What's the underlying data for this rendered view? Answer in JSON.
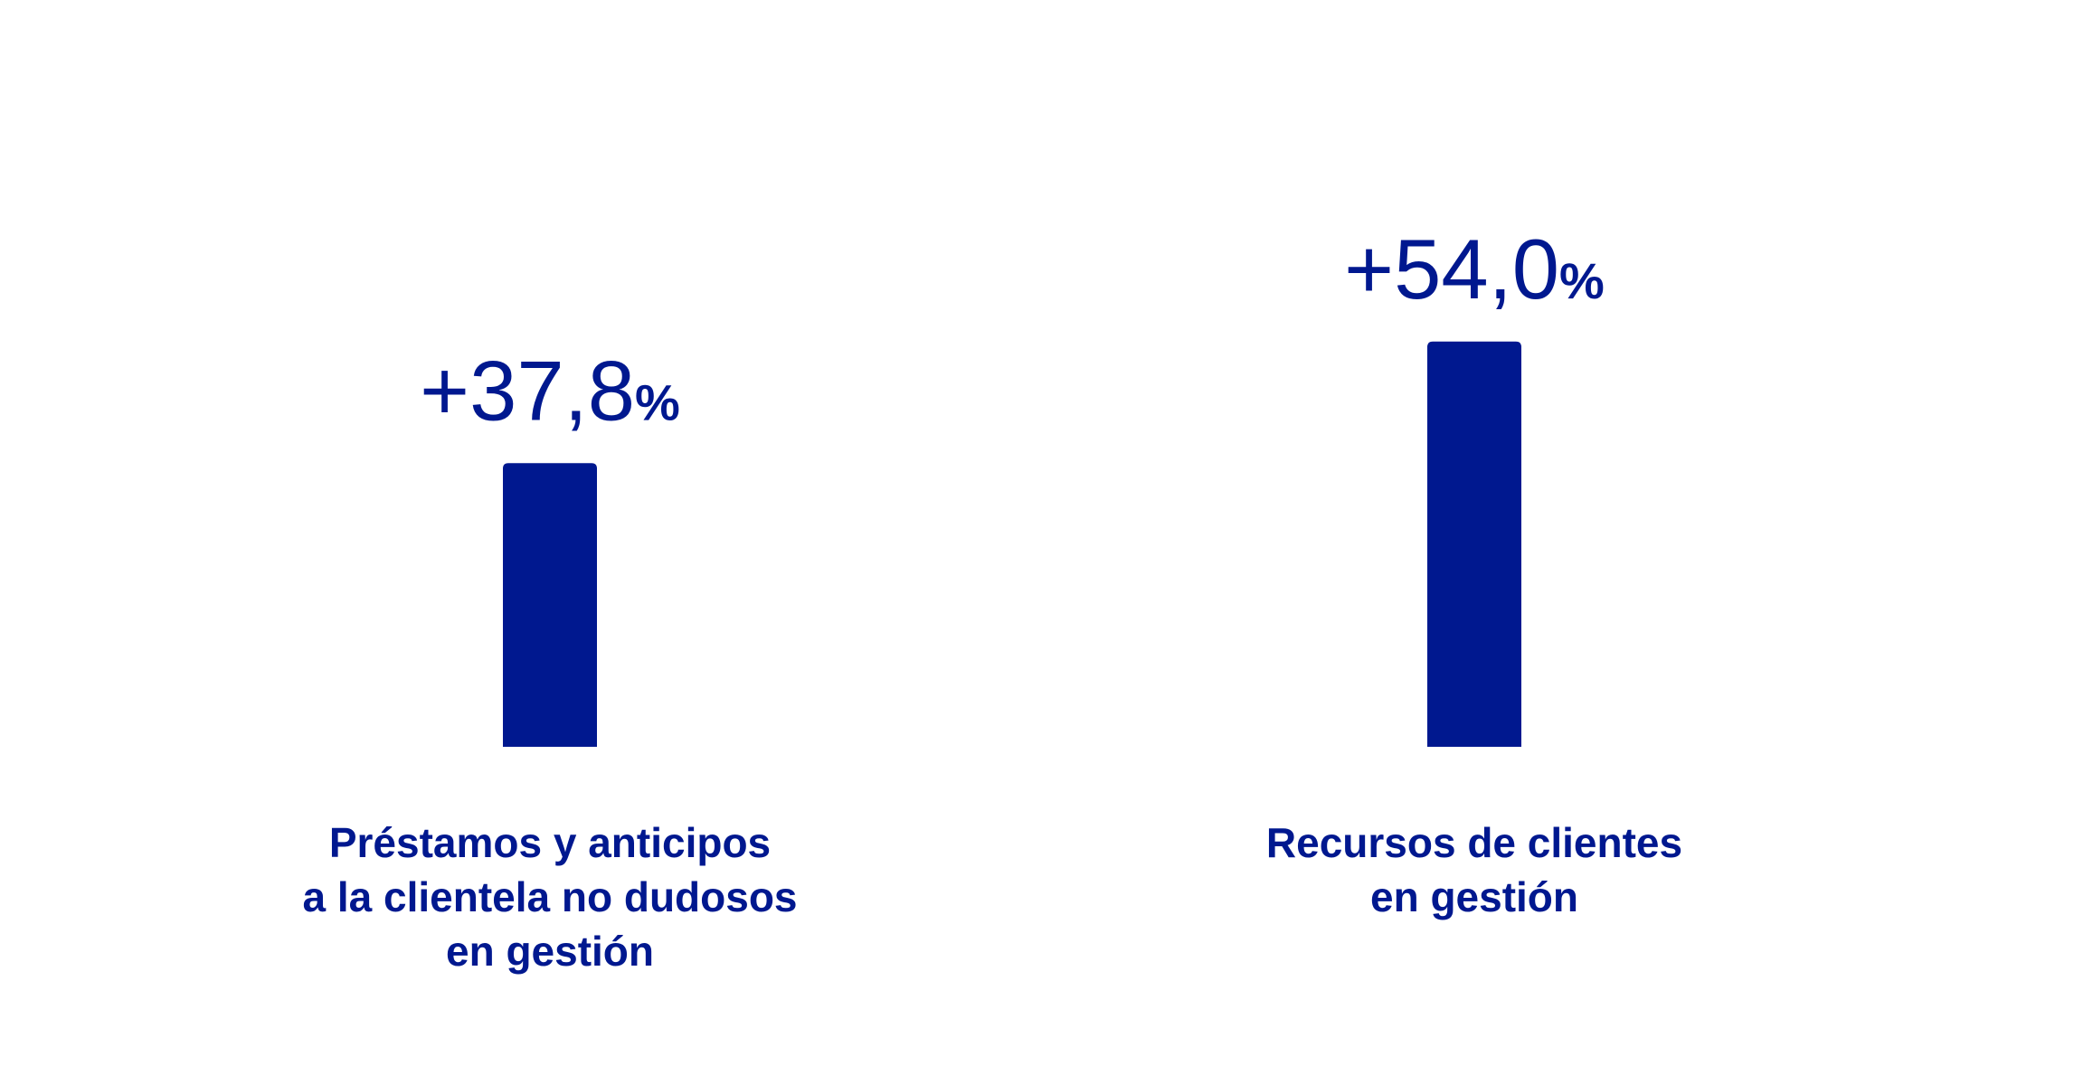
{
  "chart_data": {
    "type": "bar",
    "categories": [
      [
        "Préstamos y anticipos",
        "a la clientela no dudosos",
        "en gestión"
      ],
      [
        "Recursos de clientes",
        "en gestión"
      ]
    ],
    "values": [
      37.8,
      54.0
    ],
    "value_labels": [
      {
        "number": "+37,8",
        "unit": "%"
      },
      {
        "number": "+54,0",
        "unit": "%"
      }
    ],
    "ylim": [
      0,
      60
    ],
    "grid": false,
    "legend": "none"
  },
  "colors": {
    "bar": "#00188F",
    "text": "#00188F",
    "background": "#FFFFFF"
  }
}
